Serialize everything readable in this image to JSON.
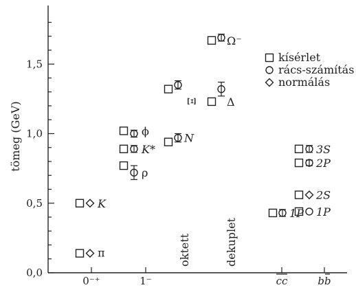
{
  "chart_data": {
    "type": "scatter",
    "ylabel": "tömeg (GeV)",
    "ylim": [
      0.0,
      1.85
    ],
    "yticks": [
      0.0,
      0.5,
      1.0,
      1.5
    ],
    "ytick_labels": [
      "0,0",
      "0,5",
      "1,0",
      "1,5"
    ],
    "x_categories": [
      "0⁻⁺",
      "1⁻",
      "cc",
      "bb"
    ],
    "legend": {
      "position": "top-right",
      "entries": [
        {
          "marker": "square",
          "label": "kísérlet"
        },
        {
          "marker": "circle",
          "label": "rács-számítás"
        },
        {
          "marker": "diamond",
          "label": "normálás"
        }
      ]
    },
    "group_labels": [
      {
        "text": "oktett",
        "orientation": "vertical"
      },
      {
        "text": "dekuplet",
        "orientation": "vertical"
      }
    ],
    "series": [
      {
        "name": "kísérlet",
        "marker": "square",
        "points": [
          {
            "particle": "π",
            "mass": 0.14
          },
          {
            "particle": "K",
            "mass": 0.5
          },
          {
            "particle": "ρ",
            "mass": 0.77
          },
          {
            "particle": "K*",
            "mass": 0.89
          },
          {
            "particle": "ϕ",
            "mass": 1.02
          },
          {
            "particle": "N",
            "mass": 0.94
          },
          {
            "particle": "Ξ",
            "mass": 1.32
          },
          {
            "particle": "Δ",
            "mass": 1.23
          },
          {
            "particle": "Ω⁻",
            "mass": 1.67
          },
          {
            "particle": "cc 1P",
            "mass": 0.43
          },
          {
            "particle": "bb 2P",
            "mass": 0.79
          },
          {
            "particle": "bb 3S",
            "mass": 0.89
          },
          {
            "particle": "bb 2S",
            "mass": 0.56
          },
          {
            "particle": "bb 1P",
            "mass": 0.44
          }
        ]
      },
      {
        "name": "rács-számítás",
        "marker": "circle",
        "points": [
          {
            "particle": "ρ",
            "mass": 0.72,
            "err": 0.05
          },
          {
            "particle": "K*",
            "mass": 0.89,
            "err": 0.025
          },
          {
            "particle": "ϕ",
            "mass": 1.0,
            "err": 0.025
          },
          {
            "particle": "N",
            "mass": 0.97,
            "err": 0.03
          },
          {
            "particle": "Ξ",
            "mass": 1.35,
            "err": 0.03
          },
          {
            "particle": "Δ",
            "mass": 1.32,
            "err": 0.05
          },
          {
            "particle": "Ω⁻",
            "mass": 1.69,
            "err": 0.025
          },
          {
            "particle": "cc 1P",
            "mass": 0.43,
            "err": 0.025
          },
          {
            "particle": "bb 2P",
            "mass": 0.79,
            "err": 0.02
          },
          {
            "particle": "bb 3S",
            "mass": 0.89,
            "err": 0.025
          },
          {
            "particle": "bb 1P",
            "mass": 0.44,
            "err": 0.0
          }
        ]
      },
      {
        "name": "normálás",
        "marker": "diamond",
        "points": [
          {
            "particle": "π",
            "mass": 0.14
          },
          {
            "particle": "K",
            "mass": 0.5
          },
          {
            "particle": "bb 2S",
            "mass": 0.56
          }
        ]
      }
    ],
    "particle_labels": [
      {
        "id": "pi",
        "text": "π",
        "italic": false
      },
      {
        "id": "K",
        "text": "K",
        "italic": true
      },
      {
        "id": "rho",
        "text": "ρ",
        "italic": false
      },
      {
        "id": "Kstar",
        "text": "K*",
        "italic": true
      },
      {
        "id": "phi",
        "text": "ϕ",
        "italic": false
      },
      {
        "id": "N",
        "text": "N",
        "italic": true
      },
      {
        "id": "Xi",
        "text": "Ξ",
        "italic": false
      },
      {
        "id": "Delta",
        "text": "Δ",
        "italic": false
      },
      {
        "id": "Omega",
        "text": "Ω⁻",
        "italic": false
      },
      {
        "id": "cc1P",
        "text": "1P",
        "italic": true
      },
      {
        "id": "bb3S",
        "text": "3S",
        "italic": true
      },
      {
        "id": "bb2P",
        "text": "2P",
        "italic": true
      },
      {
        "id": "bb2S",
        "text": "2S",
        "italic": true
      },
      {
        "id": "bb1P",
        "text": "1P",
        "italic": true
      }
    ],
    "grid": false
  }
}
